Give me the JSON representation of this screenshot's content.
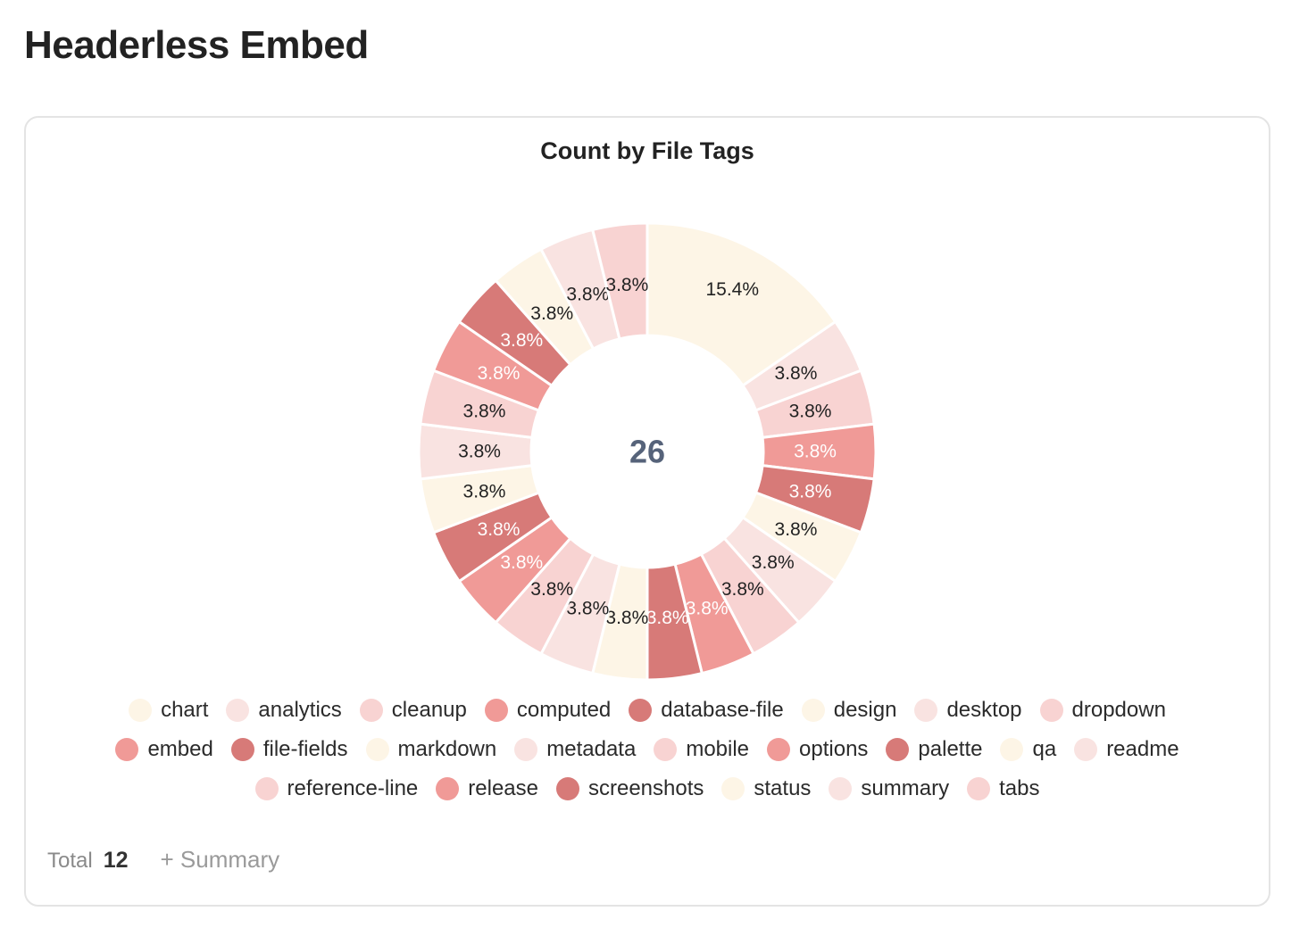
{
  "page": {
    "title": "Headerless Embed"
  },
  "colors": {
    "palette": [
      "#fdf5e6",
      "#f9e3e1",
      "#f8d3d2",
      "#f09a97",
      "#d77a78"
    ],
    "center_text": "#56637a",
    "label_light": "#ffffff",
    "label_dark": "#222222"
  },
  "chart_data": {
    "type": "pie",
    "title": "Count by File Tags",
    "center_value": "26",
    "categories": [
      "chart",
      "analytics",
      "cleanup",
      "computed",
      "database-file",
      "design",
      "desktop",
      "dropdown",
      "embed",
      "file-fields",
      "markdown",
      "metadata",
      "mobile",
      "options",
      "palette",
      "qa",
      "readme",
      "reference-line",
      "release",
      "screenshots",
      "status",
      "summary",
      "tabs"
    ],
    "values": [
      4,
      1,
      1,
      1,
      1,
      1,
      1,
      1,
      1,
      1,
      1,
      1,
      1,
      1,
      1,
      1,
      1,
      1,
      1,
      1,
      1,
      1,
      1
    ],
    "labels": [
      "15.4%",
      "3.8%",
      "3.8%",
      "3.8%",
      "3.8%",
      "3.8%",
      "3.8%",
      "3.8%",
      "3.8%",
      "3.8%",
      "3.8%",
      "3.8%",
      "3.8%",
      "3.8%",
      "3.8%",
      "3.8%",
      "3.8%",
      "3.8%",
      "3.8%",
      "3.8%",
      "3.8%",
      "3.8%",
      "3.8%"
    ],
    "legend_position": "bottom"
  },
  "footer": {
    "total_label": "Total",
    "total_value": "12",
    "summary_label": "+ Summary"
  }
}
